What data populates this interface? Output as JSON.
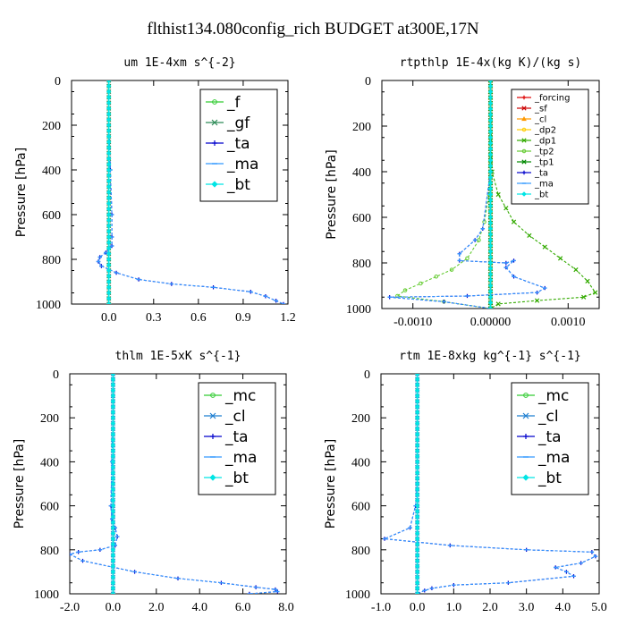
{
  "figure_title": "flthist134.080config_rich  BUDGET at300E,17N",
  "chart_data": [
    {
      "type": "line",
      "title": "um   1E-4xm s^{-2}",
      "ylabel": "Pressure  [hPa]",
      "xlim": [
        -0.25,
        1.2
      ],
      "ylim": [
        1000,
        0
      ],
      "xticks": [
        0,
        0.3,
        0.6,
        0.9,
        1.2
      ],
      "xtick_labels": [
        "0.0",
        "0.3",
        "0.6",
        "0.9",
        "1.2"
      ],
      "yticks": [
        0,
        200,
        400,
        600,
        800,
        1000
      ],
      "ytick_labels": [
        "0",
        "200",
        "400",
        "600",
        "800",
        "1000"
      ],
      "legend_position": "top-right",
      "legend_size": "large",
      "series": [
        {
          "name": "_f",
          "color": "#33cc33",
          "marker": "circle",
          "x": [
            0,
            0,
            0,
            0,
            0
          ],
          "y": [
            0,
            200,
            500,
            800,
            1000
          ]
        },
        {
          "name": "_gf",
          "color": "#2e8b57",
          "marker": "x",
          "x": [
            0,
            0,
            0,
            0,
            0
          ],
          "y": [
            0,
            200,
            500,
            800,
            1000
          ]
        },
        {
          "name": "_ta",
          "color": "#0000cc",
          "marker": "plus",
          "x": [
            0,
            0,
            0.01,
            0.02,
            0.02,
            0.02,
            -0.02,
            -0.06,
            -0.07,
            -0.05,
            0.05,
            0.2,
            0.42,
            0.7,
            0.95,
            1.05,
            1.12,
            1.17
          ],
          "y": [
            0,
            200,
            400,
            600,
            700,
            740,
            770,
            790,
            810,
            830,
            860,
            890,
            910,
            925,
            945,
            965,
            985,
            1000
          ]
        },
        {
          "name": "_ma",
          "color": "#3399ff",
          "marker": "dash",
          "x": [
            0,
            0,
            0.01,
            0.02,
            0.02,
            0.02,
            -0.02,
            -0.06,
            -0.07,
            -0.05,
            0.05,
            0.2,
            0.42,
            0.7,
            0.95,
            1.05,
            1.12,
            1.17
          ],
          "y": [
            0,
            200,
            400,
            600,
            700,
            740,
            770,
            790,
            810,
            830,
            860,
            890,
            910,
            925,
            945,
            965,
            985,
            1000
          ]
        },
        {
          "name": "_bt",
          "color": "#00e5e5",
          "marker": "diamond",
          "x": [
            0,
            0,
            0,
            0,
            0
          ],
          "y": [
            0,
            200,
            500,
            800,
            1000
          ]
        }
      ]
    },
    {
      "type": "line",
      "title": "rtpthlp   1E-4x(kg K)/(kg s)",
      "ylabel": "Pressure  [hPa]",
      "xlim": [
        -0.0014,
        0.0014
      ],
      "ylim": [
        1000,
        0
      ],
      "xticks": [
        -0.001,
        0,
        0.001
      ],
      "xtick_labels": [
        "-0.0010",
        "0.00000",
        "0.0010"
      ],
      "yticks": [
        0,
        200,
        400,
        600,
        800,
        1000
      ],
      "ytick_labels": [
        "0",
        "200",
        "400",
        "600",
        "800",
        "1000"
      ],
      "legend_position": "top-right",
      "legend_size": "small",
      "series": [
        {
          "name": "_forcing",
          "color": "#dd0000",
          "marker": "plus",
          "x": [
            0,
            0,
            0
          ],
          "y": [
            0,
            500,
            1000
          ]
        },
        {
          "name": "_sf",
          "color": "#cc0000",
          "marker": "x",
          "x": [
            0,
            0,
            0
          ],
          "y": [
            0,
            500,
            1000
          ]
        },
        {
          "name": "_cl",
          "color": "#ff9900",
          "marker": "triangle",
          "x": [
            0,
            0,
            0
          ],
          "y": [
            0,
            500,
            1000
          ]
        },
        {
          "name": "_dp2",
          "color": "#ffcc00",
          "marker": "circle",
          "x": [
            0,
            0,
            0
          ],
          "y": [
            0,
            500,
            1000
          ]
        },
        {
          "name": "_dp1",
          "color": "#33aa00",
          "marker": "x",
          "x": [
            0,
            2e-05,
            0.0001,
            0.0002,
            0.0003,
            0.0005,
            0.0007,
            0.0009,
            0.0011,
            0.00125,
            0.00135,
            0.0012,
            0.0006,
            0.0001,
            0
          ],
          "y": [
            0,
            400,
            500,
            560,
            620,
            680,
            730,
            780,
            830,
            880,
            930,
            950,
            965,
            980,
            1000
          ]
        },
        {
          "name": "_tp2",
          "color": "#66cc33",
          "marker": "circle",
          "x": [
            0,
            -2e-05,
            -8e-05,
            -0.00015,
            -0.0003,
            -0.0005,
            -0.0007,
            -0.0009,
            -0.0011,
            -0.0012,
            -0.0006,
            0
          ],
          "y": [
            0,
            500,
            620,
            700,
            780,
            830,
            860,
            890,
            920,
            945,
            970,
            1000
          ]
        },
        {
          "name": "_tp1",
          "color": "#008800",
          "marker": "x",
          "x": [
            0,
            0,
            0
          ],
          "y": [
            0,
            500,
            1000
          ]
        },
        {
          "name": "_ta",
          "color": "#0000cc",
          "marker": "plus",
          "x": [
            0,
            0,
            -0.0001,
            -0.0002,
            -0.0004,
            -0.0004,
            0.0002,
            0.0003,
            0.0002,
            0.0003,
            0.0007,
            0.0006,
            -0.0003,
            -0.0013,
            -0.0006,
            0
          ],
          "y": [
            0,
            400,
            650,
            700,
            760,
            790,
            800,
            790,
            820,
            860,
            910,
            930,
            945,
            950,
            970,
            1000
          ]
        },
        {
          "name": "_ma",
          "color": "#3399ff",
          "marker": "dash",
          "x": [
            0,
            0,
            -0.0001,
            -0.0002,
            -0.0004,
            -0.0004,
            0.0002,
            0.0003,
            0.0002,
            0.0003,
            0.0007,
            0.0006,
            -0.0003,
            -0.0013,
            -0.0006,
            0
          ],
          "y": [
            0,
            400,
            650,
            700,
            760,
            790,
            800,
            790,
            820,
            860,
            910,
            930,
            945,
            950,
            970,
            1000
          ]
        },
        {
          "name": "_bt",
          "color": "#00e5e5",
          "marker": "diamond",
          "x": [
            0,
            0,
            0
          ],
          "y": [
            0,
            500,
            1000
          ]
        }
      ]
    },
    {
      "type": "line",
      "title": "thlm   1E-5xK s^{-1}",
      "ylabel": "Pressure  [hPa]",
      "xlim": [
        -2.0,
        8.0
      ],
      "ylim": [
        1000,
        0
      ],
      "xticks": [
        -2,
        0,
        2,
        4,
        6,
        8
      ],
      "xtick_labels": [
        "-2.0",
        "0.0",
        "2.0",
        "4.0",
        "6.0",
        "8.0"
      ],
      "yticks": [
        0,
        200,
        400,
        600,
        800,
        1000
      ],
      "ytick_labels": [
        "0",
        "200",
        "400",
        "600",
        "800",
        "1000"
      ],
      "legend_position": "top-right",
      "legend_size": "large",
      "series": [
        {
          "name": "_mc",
          "color": "#33cc33",
          "marker": "circle",
          "x": [
            0,
            0,
            0,
            0,
            0
          ],
          "y": [
            0,
            200,
            500,
            800,
            1000
          ]
        },
        {
          "name": "_cl",
          "color": "#1f7fd0",
          "marker": "x",
          "x": [
            0,
            0,
            0,
            0,
            0
          ],
          "y": [
            0,
            200,
            500,
            800,
            1000
          ]
        },
        {
          "name": "_ta",
          "color": "#0000cc",
          "marker": "plus",
          "x": [
            0,
            0,
            -0.05,
            -0.1,
            -0.05,
            0.1,
            0.2,
            0.1,
            -0.6,
            -1.6,
            -2.0,
            -1.4,
            1.0,
            3.0,
            5.0,
            6.6,
            7.5,
            7.6,
            6.3
          ],
          "y": [
            0,
            200,
            400,
            600,
            660,
            700,
            740,
            780,
            800,
            810,
            820,
            850,
            900,
            930,
            950,
            970,
            980,
            990,
            1000
          ]
        },
        {
          "name": "_ma",
          "color": "#3399ff",
          "marker": "dash",
          "x": [
            0,
            0,
            -0.05,
            -0.1,
            -0.05,
            0.1,
            0.2,
            0.1,
            -0.6,
            -1.6,
            -2.0,
            -1.4,
            1.0,
            3.0,
            5.0,
            6.6,
            7.5,
            7.6,
            6.3
          ],
          "y": [
            0,
            200,
            400,
            600,
            660,
            700,
            740,
            780,
            800,
            810,
            820,
            850,
            900,
            930,
            950,
            970,
            980,
            990,
            1000
          ]
        },
        {
          "name": "_bt",
          "color": "#00e5e5",
          "marker": "diamond",
          "x": [
            0,
            0,
            0,
            0,
            0
          ],
          "y": [
            0,
            200,
            500,
            800,
            1000
          ]
        }
      ]
    },
    {
      "type": "line",
      "title": "rtm   1E-8xkg kg^{-1} s^{-1}",
      "ylabel": "Pressure  [hPa]",
      "xlim": [
        -1.0,
        5.0
      ],
      "ylim": [
        1000,
        0
      ],
      "xticks": [
        -1,
        0,
        1,
        2,
        3,
        4,
        5
      ],
      "xtick_labels": [
        "-1.0",
        "0.0",
        "1.0",
        "2.0",
        "3.0",
        "4.0",
        "5.0"
      ],
      "yticks": [
        0,
        200,
        400,
        600,
        800,
        1000
      ],
      "ytick_labels": [
        "0",
        "200",
        "400",
        "600",
        "800",
        "1000"
      ],
      "legend_position": "top-right",
      "legend_size": "large",
      "series": [
        {
          "name": "_mc",
          "color": "#33cc33",
          "marker": "circle",
          "x": [
            0,
            0,
            0,
            0,
            0
          ],
          "y": [
            0,
            200,
            500,
            800,
            1000
          ]
        },
        {
          "name": "_cl",
          "color": "#1f7fd0",
          "marker": "x",
          "x": [
            0,
            0,
            0,
            0,
            0
          ],
          "y": [
            0,
            200,
            500,
            800,
            1000
          ]
        },
        {
          "name": "_ta",
          "color": "#0000cc",
          "marker": "plus",
          "x": [
            0,
            0,
            0,
            -0.05,
            -0.2,
            -0.9,
            0.9,
            3.0,
            4.8,
            4.9,
            4.5,
            3.8,
            4.1,
            4.3,
            2.5,
            1.0,
            0.4,
            0.2,
            0
          ],
          "y": [
            0,
            200,
            500,
            600,
            700,
            750,
            780,
            800,
            810,
            830,
            860,
            880,
            900,
            920,
            950,
            960,
            975,
            985,
            1000
          ]
        },
        {
          "name": "_ma",
          "color": "#3399ff",
          "marker": "dash",
          "x": [
            0,
            0,
            0,
            -0.05,
            -0.2,
            -0.9,
            0.9,
            3.0,
            4.8,
            4.9,
            4.5,
            3.8,
            4.1,
            4.3,
            2.5,
            1.0,
            0.4,
            0.2,
            0
          ],
          "y": [
            0,
            200,
            500,
            600,
            700,
            750,
            780,
            800,
            810,
            830,
            860,
            880,
            900,
            920,
            950,
            960,
            975,
            985,
            1000
          ]
        },
        {
          "name": "_bt",
          "color": "#00e5e5",
          "marker": "diamond",
          "x": [
            0,
            0,
            0,
            0,
            0
          ],
          "y": [
            0,
            200,
            500,
            800,
            1000
          ]
        }
      ]
    }
  ]
}
